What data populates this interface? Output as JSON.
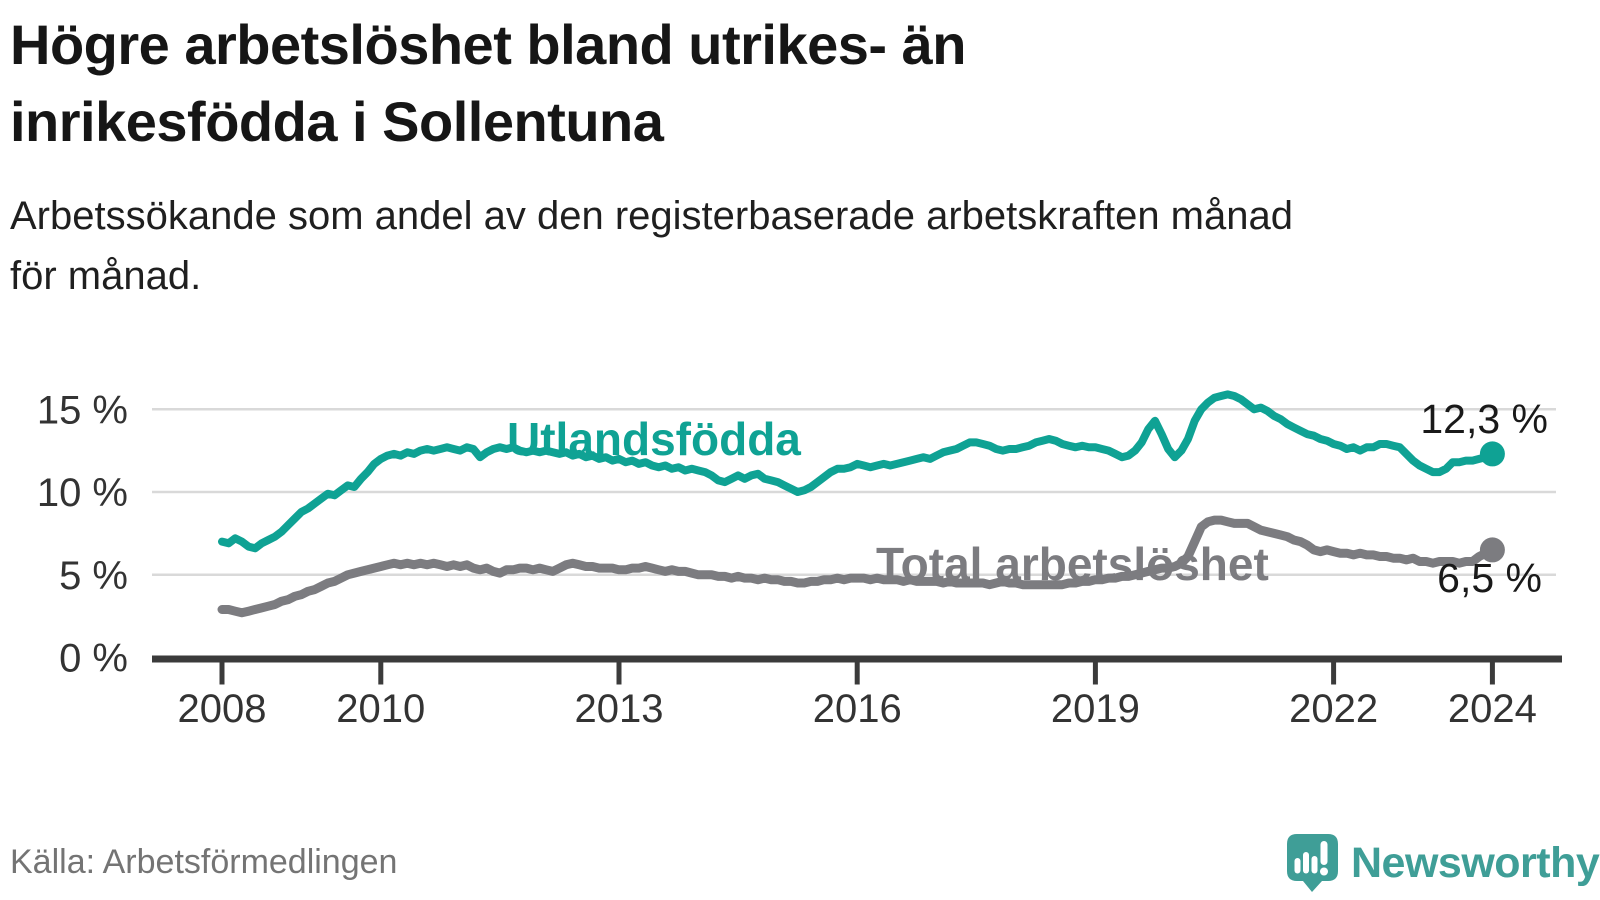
{
  "header": {
    "title_line1": "Högre arbetslöshet bland utrikes- än",
    "title_line2": "inrikesfödda i Sollentuna",
    "subtitle_line1": "Arbetssökande som andel av den registerbaserade arbetskraften månad",
    "subtitle_line2": "för månad."
  },
  "footer": {
    "source": "Källa: Arbetsförmedlingen",
    "brand": "Newsworthy",
    "brand_color": "#3f9e97",
    "logo_icon": "speech-bubble-bar-chart-icon"
  },
  "chart_data": {
    "type": "line",
    "title": "Högre arbetslöshet bland utrikes- än inrikesfödda i Sollentuna",
    "subtitle": "Arbetssökande som andel av den registerbaserade arbetskraften månad för månad.",
    "source": "Källa: Arbetsförmedlingen",
    "unit": "%",
    "grid": "horizontal",
    "legend_position": "inline-labels",
    "x_start_year": 2008,
    "points_per_year": 12,
    "x_end": "2024-01",
    "ylim": [
      0,
      16.5
    ],
    "y_axis": {
      "ticks": [
        {
          "value": 0,
          "label": "0 %"
        },
        {
          "value": 5,
          "label": "5 %"
        },
        {
          "value": 10,
          "label": "10 %"
        },
        {
          "value": 15,
          "label": "15 %"
        }
      ]
    },
    "x_ticks": [
      {
        "year": 2008,
        "label": "2008"
      },
      {
        "year": 2010,
        "label": "2010"
      },
      {
        "year": 2013,
        "label": "2013"
      },
      {
        "year": 2016,
        "label": "2016"
      },
      {
        "year": 2019,
        "label": "2019"
      },
      {
        "year": 2022,
        "label": "2022"
      },
      {
        "year": 2024,
        "label": "2024"
      }
    ],
    "colors": {
      "grid": "#d9d9d9",
      "axis": "#3b3b3b",
      "tick_text": "#333333"
    },
    "series": [
      {
        "name": "Utlandsfödda",
        "color": "#0fa294",
        "end_label": "12,3 %",
        "end_value": 12.3,
        "values": [
          7.0,
          6.9,
          7.2,
          7.0,
          6.7,
          6.6,
          6.9,
          7.1,
          7.3,
          7.6,
          8.0,
          8.4,
          8.8,
          9.0,
          9.3,
          9.6,
          9.9,
          9.8,
          10.1,
          10.4,
          10.3,
          10.8,
          11.2,
          11.7,
          12.0,
          12.2,
          12.3,
          12.2,
          12.4,
          12.3,
          12.5,
          12.6,
          12.5,
          12.6,
          12.7,
          12.6,
          12.5,
          12.7,
          12.6,
          12.1,
          12.4,
          12.6,
          12.7,
          12.6,
          12.7,
          12.5,
          12.4,
          12.5,
          12.4,
          12.5,
          12.4,
          12.3,
          12.4,
          12.2,
          12.3,
          12.1,
          12.2,
          12.0,
          12.1,
          11.9,
          12.0,
          11.8,
          11.9,
          11.7,
          11.8,
          11.6,
          11.5,
          11.6,
          11.4,
          11.5,
          11.3,
          11.4,
          11.3,
          11.2,
          11.0,
          10.7,
          10.6,
          10.8,
          11.0,
          10.8,
          11.0,
          11.1,
          10.8,
          10.7,
          10.6,
          10.4,
          10.2,
          10.0,
          10.1,
          10.3,
          10.6,
          10.9,
          11.2,
          11.4,
          11.4,
          11.5,
          11.7,
          11.6,
          11.5,
          11.6,
          11.7,
          11.6,
          11.7,
          11.8,
          11.9,
          12.0,
          12.1,
          12.0,
          12.2,
          12.4,
          12.5,
          12.6,
          12.8,
          13.0,
          13.0,
          12.9,
          12.8,
          12.6,
          12.5,
          12.6,
          12.6,
          12.7,
          12.8,
          13.0,
          13.1,
          13.2,
          13.1,
          12.9,
          12.8,
          12.7,
          12.8,
          12.7,
          12.7,
          12.6,
          12.5,
          12.3,
          12.1,
          12.2,
          12.5,
          13.0,
          13.8,
          14.3,
          13.5,
          12.6,
          12.1,
          12.5,
          13.2,
          14.3,
          15.0,
          15.4,
          15.7,
          15.8,
          15.9,
          15.8,
          15.6,
          15.3,
          15.0,
          15.1,
          14.9,
          14.6,
          14.4,
          14.1,
          13.9,
          13.7,
          13.5,
          13.4,
          13.2,
          13.1,
          12.9,
          12.8,
          12.6,
          12.7,
          12.5,
          12.7,
          12.7,
          12.9,
          12.9,
          12.8,
          12.7,
          12.3,
          11.9,
          11.6,
          11.4,
          11.2,
          11.2,
          11.4,
          11.8,
          11.8,
          11.9,
          11.9,
          12.0,
          12.1,
          12.3
        ]
      },
      {
        "name": "Total arbetslöshet",
        "color": "#7c7c80",
        "end_label": "6,5 %",
        "end_value": 6.5,
        "values": [
          2.9,
          2.9,
          2.8,
          2.7,
          2.8,
          2.9,
          3.0,
          3.1,
          3.2,
          3.4,
          3.5,
          3.7,
          3.8,
          4.0,
          4.1,
          4.3,
          4.5,
          4.6,
          4.8,
          5.0,
          5.1,
          5.2,
          5.3,
          5.4,
          5.5,
          5.6,
          5.7,
          5.6,
          5.7,
          5.6,
          5.7,
          5.6,
          5.7,
          5.6,
          5.5,
          5.6,
          5.5,
          5.6,
          5.4,
          5.3,
          5.4,
          5.2,
          5.1,
          5.3,
          5.3,
          5.4,
          5.4,
          5.3,
          5.4,
          5.3,
          5.2,
          5.4,
          5.6,
          5.7,
          5.6,
          5.5,
          5.5,
          5.4,
          5.4,
          5.4,
          5.3,
          5.3,
          5.4,
          5.4,
          5.5,
          5.4,
          5.3,
          5.2,
          5.3,
          5.2,
          5.2,
          5.1,
          5.0,
          5.0,
          5.0,
          4.9,
          4.9,
          4.8,
          4.9,
          4.8,
          4.8,
          4.7,
          4.8,
          4.7,
          4.7,
          4.6,
          4.6,
          4.5,
          4.5,
          4.6,
          4.6,
          4.7,
          4.7,
          4.8,
          4.7,
          4.8,
          4.8,
          4.8,
          4.7,
          4.8,
          4.7,
          4.7,
          4.7,
          4.6,
          4.7,
          4.6,
          4.6,
          4.6,
          4.6,
          4.5,
          4.6,
          4.5,
          4.5,
          4.5,
          4.5,
          4.5,
          4.4,
          4.5,
          4.6,
          4.5,
          4.5,
          4.4,
          4.4,
          4.4,
          4.4,
          4.4,
          4.4,
          4.4,
          4.5,
          4.5,
          4.6,
          4.6,
          4.7,
          4.7,
          4.8,
          4.8,
          4.9,
          4.9,
          5.0,
          5.1,
          5.2,
          5.3,
          5.4,
          5.4,
          5.5,
          5.7,
          6.1,
          7.0,
          7.9,
          8.2,
          8.3,
          8.3,
          8.2,
          8.1,
          8.1,
          8.1,
          7.9,
          7.7,
          7.6,
          7.5,
          7.4,
          7.3,
          7.1,
          7.0,
          6.8,
          6.5,
          6.4,
          6.5,
          6.4,
          6.3,
          6.3,
          6.2,
          6.3,
          6.2,
          6.2,
          6.1,
          6.1,
          6.0,
          6.0,
          5.9,
          6.0,
          5.8,
          5.8,
          5.7,
          5.8,
          5.8,
          5.8,
          5.7,
          5.8,
          5.8,
          6.1,
          6.3,
          6.5
        ]
      }
    ]
  }
}
